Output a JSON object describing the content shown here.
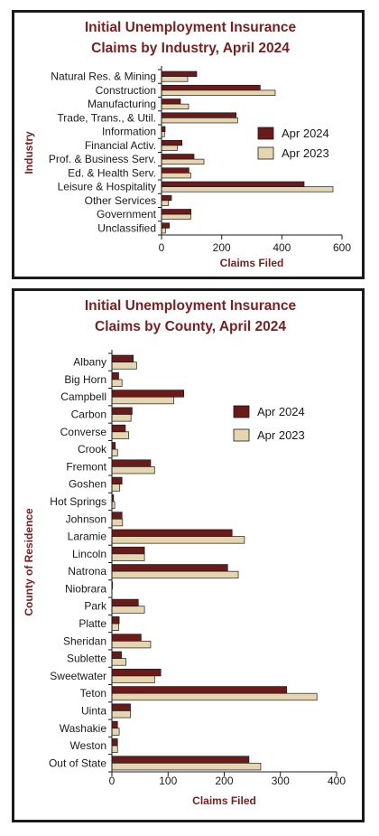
{
  "chart_data": [
    {
      "type": "bar",
      "orientation": "horizontal",
      "title_lines": [
        "Initial Unemployment Insurance",
        "Claims by Industry, April 2024"
      ],
      "xlabel": "Claims Filed",
      "ylabel": "Industry",
      "xlim": [
        0,
        600
      ],
      "xticks": [
        0,
        200,
        400,
        600
      ],
      "legend_position": "right",
      "categories": [
        "Natural Res. & Mining",
        "Construction",
        "Manufacturing",
        "Trade, Trans., & Util.",
        "Information",
        "Financial Activ.",
        "Prof. & Business Serv.",
        "Ed. & Health Serv.",
        "Leisure & Hospitality",
        "Other Services",
        "Government",
        "Unclassified"
      ],
      "series": [
        {
          "name": "Apr 2024",
          "color": "#6b1a1a",
          "values": [
            117,
            328,
            63,
            248,
            12,
            68,
            108,
            91,
            474,
            33,
            98,
            26
          ]
        },
        {
          "name": "Apr 2023",
          "color": "#e6d6b0",
          "values": [
            87,
            378,
            90,
            253,
            10,
            52,
            141,
            97,
            570,
            23,
            97,
            13
          ]
        }
      ]
    },
    {
      "type": "bar",
      "orientation": "horizontal",
      "title_lines": [
        "Initial Unemployment Insurance",
        "Claims by County, April 2024"
      ],
      "xlabel": "Claims Filed",
      "ylabel": "County of Residence",
      "xlim": [
        0,
        400
      ],
      "xticks": [
        0,
        100,
        200,
        300,
        400
      ],
      "legend_position": "upper-right",
      "categories": [
        "Albany",
        "Big Horn",
        "Campbell",
        "Carbon",
        "Converse",
        "Crook",
        "Fremont",
        "Goshen",
        "Hot Springs",
        "Johnson",
        "Laramie",
        "Lincoln",
        "Natrona",
        "Niobrara",
        "Park",
        "Platte",
        "Sheridan",
        "Sublette",
        "Sweetwater",
        "Teton",
        "Uinta",
        "Washakie",
        "Weston",
        "Out of State"
      ],
      "series": [
        {
          "name": "Apr 2024",
          "color": "#6b1a1a",
          "values": [
            38,
            12,
            128,
            36,
            24,
            6,
            69,
            18,
            3,
            18,
            214,
            58,
            206,
            1,
            47,
            13,
            52,
            17,
            87,
            311,
            33,
            10,
            10,
            244
          ]
        },
        {
          "name": "Apr 2023",
          "color": "#e6d6b0",
          "values": [
            44,
            18,
            110,
            34,
            30,
            10,
            76,
            14,
            5,
            19,
            236,
            58,
            225,
            0,
            58,
            12,
            69,
            25,
            76,
            365,
            33,
            13,
            10,
            265
          ]
        }
      ]
    }
  ]
}
